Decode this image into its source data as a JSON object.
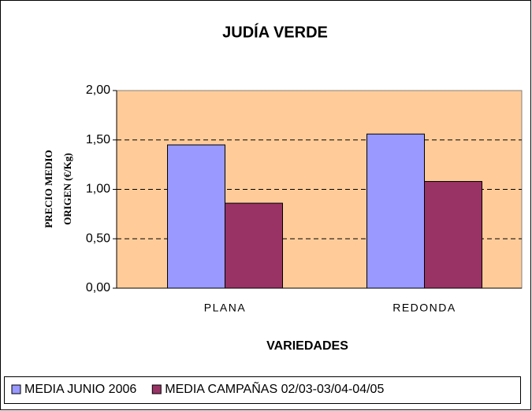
{
  "chart_data": {
    "type": "bar",
    "title": "JUDÍA VERDE",
    "ylabel": [
      "PRECIO MEDIO",
      "ORIGEN (€/Kg)"
    ],
    "xlabel": "VARIEDADES",
    "categories": [
      "PLANA",
      "REDONDA"
    ],
    "series": [
      {
        "name": "MEDIA JUNIO 2006",
        "color": "#9999ff",
        "values": [
          1.45,
          1.56
        ]
      },
      {
        "name": "MEDIA CAMPAÑAS 02/03-03/04-04/05",
        "color": "#993366",
        "values": [
          0.86,
          1.08
        ]
      }
    ],
    "ylim": [
      0,
      2
    ],
    "yticks": [
      {
        "value": 0,
        "label": "0,00"
      },
      {
        "value": 0.5,
        "label": "0,50"
      },
      {
        "value": 1,
        "label": "1,00"
      },
      {
        "value": 1.5,
        "label": "1,50"
      },
      {
        "value": 2,
        "label": "2,00"
      }
    ],
    "grid": true,
    "plot_background": "#ffcc99",
    "legend": "bottom"
  }
}
